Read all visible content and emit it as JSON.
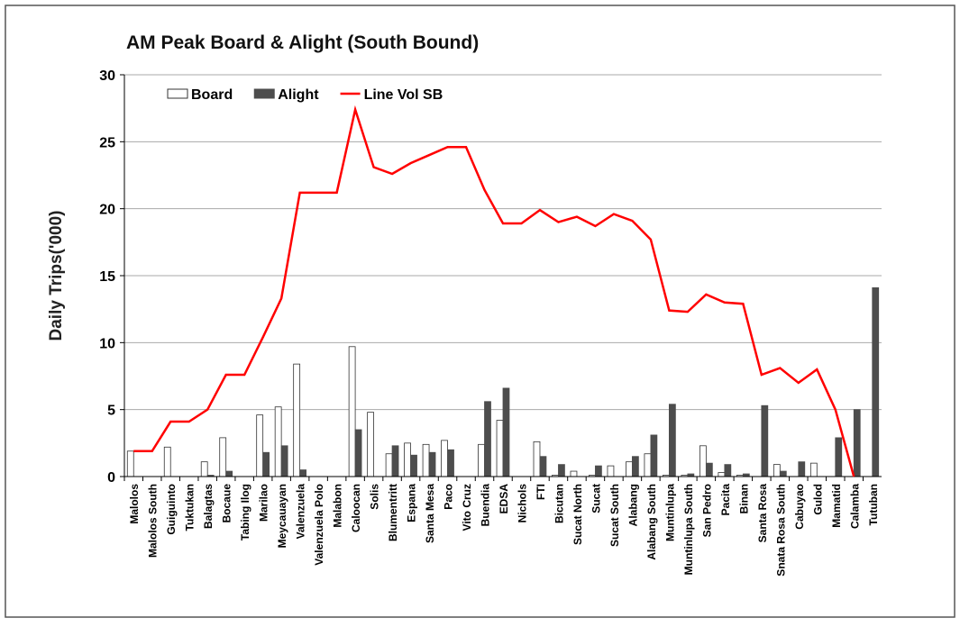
{
  "chart_data": {
    "type": "bar-line",
    "title": "AM Peak Board & Alight (South Bound)",
    "y_label": "Daily Trips('000)",
    "categories": [
      "Malolos",
      "Malolos South",
      "Guiguinto",
      "Tuktukan",
      "Balagtas",
      "Bocaue",
      "Tabing Ilog",
      "Marilao",
      "Meycauayan",
      "Valenzuela",
      "Valenzuela Polo",
      "Malabon",
      "Caloocan",
      "Solis",
      "Blumentritt",
      "Espana",
      "Santa Mesa",
      "Paco",
      "Vito Cruz",
      "Buendia",
      "EDSA",
      "Nichols",
      "FTI",
      "Bicutan",
      "Sucat North",
      "Sucat",
      "Sucat South",
      "Alabang",
      "Alabang South",
      "Muntinlupa",
      "Muntinlupa South",
      "San Pedro",
      "Pacita",
      "Binan",
      "Santa Rosa",
      "Snata Rosa South",
      "Cabuyao",
      "Gulod",
      "Mamatid",
      "Calamba",
      "Tutuban"
    ],
    "series": [
      {
        "name": "Board",
        "type": "bar",
        "color": "#ffffff",
        "values": [
          1.9,
          0,
          2.2,
          0,
          1.1,
          2.9,
          0,
          4.6,
          5.2,
          8.4,
          0,
          0,
          9.7,
          4.8,
          1.7,
          2.5,
          2.4,
          2.7,
          0,
          2.4,
          4.2,
          0,
          2.6,
          0.1,
          0.4,
          0.1,
          0.8,
          1.1,
          1.7,
          0.1,
          0.1,
          2.3,
          0.3,
          0.1,
          0,
          0.9,
          0,
          1.0,
          0,
          0,
          0
        ]
      },
      {
        "name": "Alight",
        "type": "bar",
        "color": "#4d4d4d",
        "values": [
          0,
          0,
          0,
          0,
          0.1,
          0.4,
          0,
          1.8,
          2.3,
          0.5,
          0,
          0,
          3.5,
          0,
          2.3,
          1.6,
          1.8,
          2.0,
          0,
          5.6,
          6.6,
          0,
          1.5,
          0.9,
          0,
          0.8,
          0,
          1.5,
          3.1,
          5.4,
          0.2,
          1.0,
          0.9,
          0.2,
          5.3,
          0.4,
          1.1,
          0,
          2.9,
          5.0,
          14.1
        ]
      },
      {
        "name": "Line Vol SB",
        "type": "line",
        "color": "#ff0000",
        "values": [
          1.9,
          1.9,
          4.1,
          4.1,
          5.0,
          7.6,
          7.6,
          10.4,
          13.3,
          21.2,
          21.2,
          21.2,
          27.4,
          23.1,
          22.6,
          23.4,
          24.0,
          24.6,
          24.6,
          21.4,
          18.9,
          18.9,
          19.9,
          19.0,
          19.4,
          18.7,
          19.6,
          19.1,
          17.7,
          12.4,
          12.3,
          13.6,
          13.0,
          12.9,
          7.6,
          8.1,
          7.0,
          8.0,
          5.0,
          0,
          null
        ]
      }
    ],
    "ylim": [
      0,
      30
    ],
    "yticks": [
      0,
      5,
      10,
      15,
      20,
      25,
      30
    ],
    "grid": true,
    "legend": "top-left"
  }
}
